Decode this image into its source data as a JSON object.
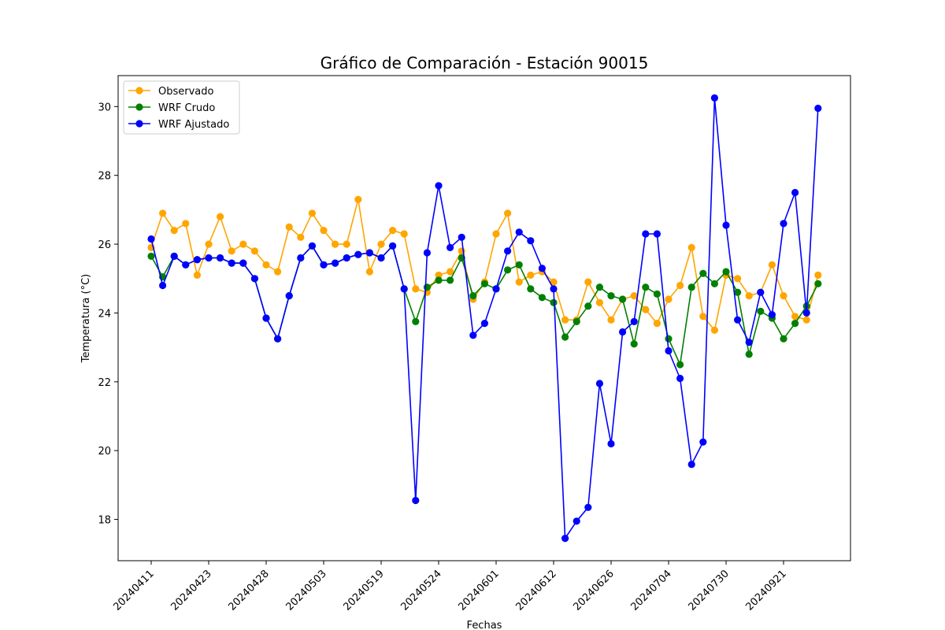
{
  "chart_data": {
    "type": "line",
    "title": "Gráfico de Comparación - Estación 90015",
    "xlabel": "Fechas",
    "ylabel": "Temperatura (°C)",
    "ylim": [
      16.8,
      30.9
    ],
    "yticks": [
      "18",
      "20",
      "22",
      "24",
      "26",
      "28",
      "30"
    ],
    "xtick_labels": [
      "20240411",
      "20240423",
      "20240428",
      "20240503",
      "20240519",
      "20240524",
      "20240601",
      "20240612",
      "20240626",
      "20240704",
      "20240730",
      "20240921"
    ],
    "grid": false,
    "legend_position": "top-left",
    "series": [
      {
        "name": "Observado",
        "color": "#ffa500",
        "values": [
          25.9,
          26.9,
          26.4,
          26.6,
          25.1,
          26.0,
          26.8,
          25.8,
          26.0,
          25.8,
          25.4,
          25.2,
          26.5,
          26.2,
          26.9,
          26.4,
          26.0,
          26.0,
          27.3,
          25.2,
          26.0,
          26.4,
          26.3,
          24.7,
          24.6,
          25.1,
          25.2,
          25.8,
          24.4,
          24.9,
          26.3,
          26.9,
          24.9,
          25.1,
          25.2,
          24.9,
          23.8,
          23.8,
          24.9,
          24.3,
          23.8,
          24.4,
          24.5,
          24.1,
          23.7,
          24.4,
          24.8,
          25.9,
          23.9,
          23.5,
          25.1,
          25.0,
          24.5,
          24.6,
          25.4,
          24.5,
          23.9,
          23.8,
          25.1
        ]
      },
      {
        "name": "WRF Crudo",
        "color": "#008000",
        "values": [
          25.65,
          25.05,
          25.65,
          25.4,
          25.55,
          25.6,
          25.6,
          25.45,
          25.45,
          25.0,
          23.85,
          23.25,
          24.5,
          25.6,
          25.95,
          25.4,
          25.45,
          25.6,
          25.7,
          25.75,
          25.6,
          25.95,
          24.7,
          23.75,
          24.75,
          24.95,
          24.95,
          25.6,
          24.5,
          24.85,
          24.7,
          25.25,
          25.4,
          24.7,
          24.45,
          24.3,
          23.3,
          23.75,
          24.2,
          24.75,
          24.5,
          24.4,
          23.1,
          24.75,
          24.55,
          23.25,
          22.5,
          24.75,
          25.15,
          24.85,
          25.2,
          24.6,
          22.8,
          24.05,
          23.85,
          23.25,
          23.7,
          24.2,
          24.85
        ]
      },
      {
        "name": "WRF Ajustado",
        "color": "#0000ff",
        "values": [
          26.15,
          24.8,
          25.65,
          25.4,
          25.55,
          25.6,
          25.6,
          25.45,
          25.45,
          25.0,
          23.85,
          23.25,
          24.5,
          25.6,
          25.95,
          25.4,
          25.45,
          25.6,
          25.7,
          25.75,
          25.6,
          25.95,
          24.7,
          18.55,
          25.75,
          27.7,
          25.9,
          26.2,
          23.35,
          23.7,
          24.7,
          25.8,
          26.35,
          26.1,
          25.3,
          24.7,
          17.45,
          17.95,
          18.35,
          21.95,
          20.2,
          23.45,
          23.75,
          26.3,
          26.3,
          22.9,
          22.1,
          19.6,
          20.25,
          30.25,
          26.55,
          23.8,
          23.15,
          24.6,
          23.95,
          26.6,
          27.5,
          24.0,
          29.95
        ]
      }
    ]
  }
}
